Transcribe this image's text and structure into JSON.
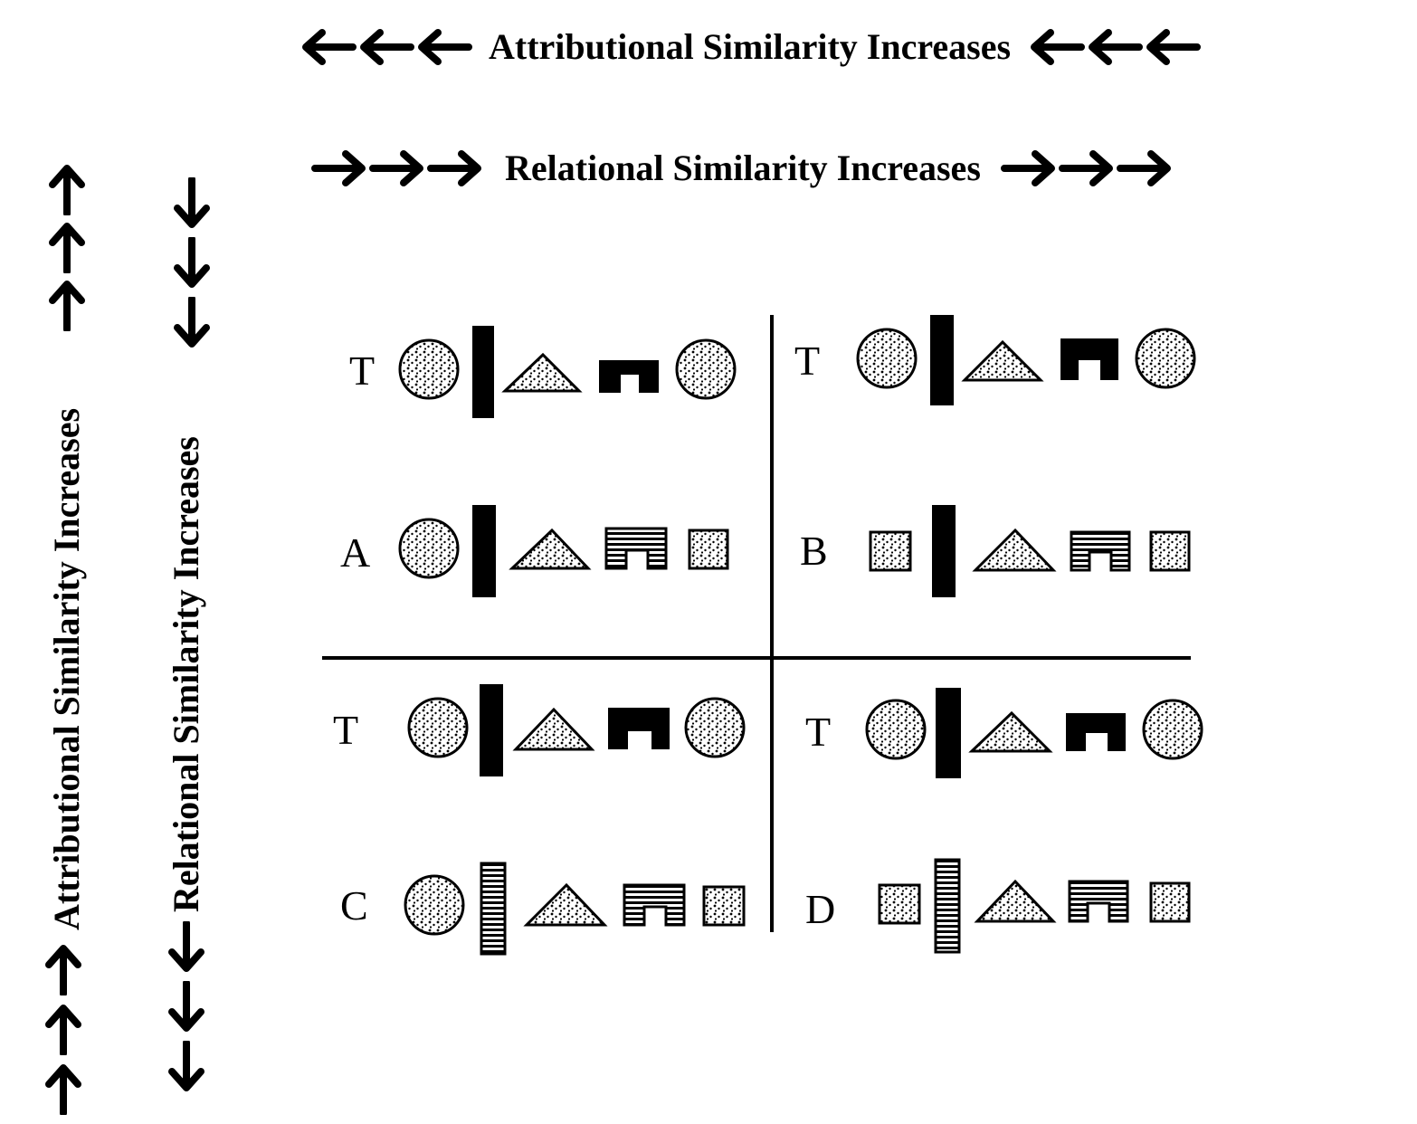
{
  "top_labels": {
    "attributional": "Attributional Similarity Increases",
    "relational": "Relational Similarity Increases"
  },
  "side_labels": {
    "attributional": "Attributional Similarity Increases",
    "relational": "Relational Similarity Increases"
  },
  "quadrants": [
    {
      "target_label": "T",
      "comparison_label": "A"
    },
    {
      "target_label": "T",
      "comparison_label": "B"
    },
    {
      "target_label": "T",
      "comparison_label": "C"
    },
    {
      "target_label": "T",
      "comparison_label": "D"
    }
  ],
  "arrow_icons": {
    "left": "arrow-left-icon",
    "right": "arrow-right-icon",
    "up": "arrow-up-icon",
    "down": "arrow-down-icon"
  }
}
